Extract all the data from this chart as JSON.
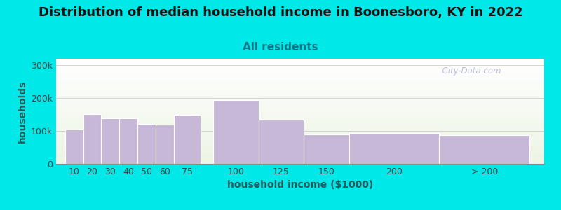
{
  "title": "Distribution of median household income in Boonesboro, KY in 2022",
  "subtitle": "All residents",
  "xlabel": "household income ($1000)",
  "ylabel": "households",
  "bar_labels": [
    "10",
    "20",
    "30",
    "40",
    "50",
    "60",
    "75",
    "100",
    "125",
    "150",
    "200",
    "> 200"
  ],
  "bar_values": [
    105000,
    152000,
    138000,
    138000,
    122000,
    120000,
    150000,
    195000,
    135000,
    90000,
    93000,
    88000
  ],
  "bar_widths": [
    10,
    10,
    10,
    10,
    10,
    10,
    15,
    25,
    25,
    25,
    50,
    50
  ],
  "bar_left_edges": [
    5,
    15,
    25,
    35,
    45,
    55,
    65,
    87,
    112,
    137,
    162,
    212
  ],
  "bar_color": "#c8b8d8",
  "bar_edgecolor": "#ffffff",
  "ylim": [
    0,
    320000
  ],
  "yticks": [
    0,
    100000,
    200000,
    300000
  ],
  "ytick_labels": [
    "0",
    "100k",
    "200k",
    "300k"
  ],
  "bg_color": "#00e8e8",
  "plot_bg_top": "#edf5e5",
  "plot_bg_bottom": "#ffffff",
  "watermark": "  City-Data.com",
  "title_fontsize": 13,
  "subtitle_fontsize": 11,
  "axis_label_fontsize": 10,
  "tick_fontsize": 9,
  "xlim": [
    0,
    270
  ]
}
